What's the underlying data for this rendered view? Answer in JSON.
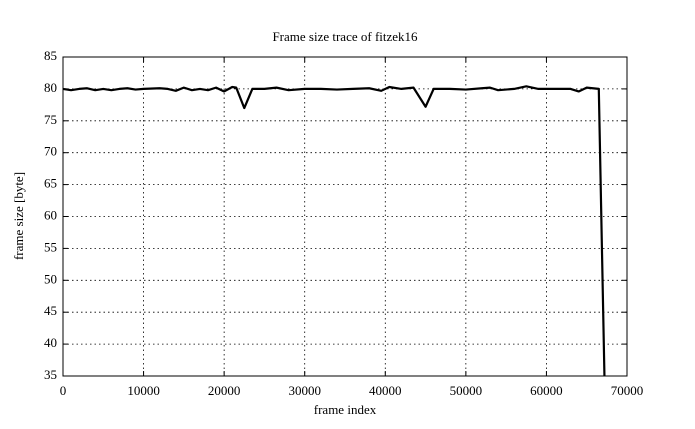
{
  "chart_data": {
    "type": "line",
    "title": "Frame size trace of fitzek16",
    "x_label": "frame index",
    "y_label": "frame size [byte]",
    "xlim": [
      0,
      70000
    ],
    "ylim": [
      35,
      85
    ],
    "xticks": [
      0,
      10000,
      20000,
      30000,
      40000,
      50000,
      60000,
      70000
    ],
    "yticks": [
      35,
      40,
      45,
      50,
      55,
      60,
      65,
      70,
      75,
      80,
      85
    ],
    "grid": true,
    "x": [
      0,
      1000,
      2000,
      3000,
      4000,
      5000,
      6000,
      7000,
      8000,
      9000,
      10000,
      12000,
      13000,
      14000,
      15000,
      16000,
      17000,
      18000,
      19000,
      20000,
      21000,
      21500,
      22500,
      23500,
      25000,
      26500,
      28000,
      30000,
      32000,
      34000,
      36000,
      38000,
      39500,
      40500,
      42000,
      43500,
      45000,
      46000,
      48000,
      50000,
      52000,
      53000,
      54000,
      56000,
      57500,
      59000,
      61000,
      63000,
      64000,
      65000,
      66500,
      67200
    ],
    "series": [
      {
        "name": "frame size",
        "color": "#000000",
        "values": [
          80.0,
          79.8,
          80.0,
          80.1,
          79.8,
          80.0,
          79.8,
          80.0,
          80.1,
          79.9,
          80.0,
          80.1,
          80.0,
          79.7,
          80.2,
          79.8,
          80.0,
          79.8,
          80.2,
          79.6,
          80.3,
          80.2,
          77.0,
          80.0,
          80.0,
          80.2,
          79.8,
          80.0,
          80.0,
          79.9,
          80.0,
          80.1,
          79.7,
          80.3,
          80.0,
          80.2,
          77.2,
          80.0,
          80.0,
          79.9,
          80.1,
          80.2,
          79.8,
          80.0,
          80.4,
          80.0,
          80.0,
          80.0,
          79.6,
          80.2,
          80.0,
          35
        ]
      }
    ]
  }
}
